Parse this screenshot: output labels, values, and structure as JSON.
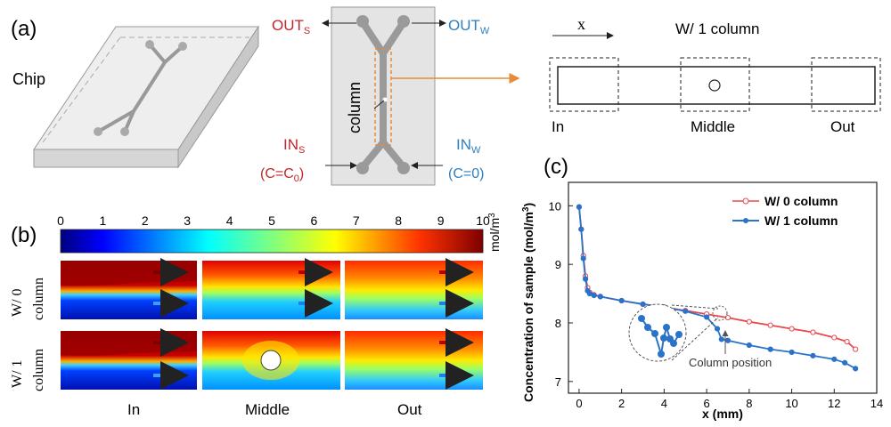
{
  "panel_a": {
    "label": "(a)",
    "chip_label": "Chip",
    "out_s": "OUT",
    "out_s_sub": "S",
    "out_w": "OUT",
    "out_w_sub": "W",
    "in_s": "IN",
    "in_s_sub": "S",
    "in_s_cond": "(C=C",
    "in_s_cond_sub": "0",
    "in_s_cond_end": ")",
    "in_w": "IN",
    "in_w_sub": "W",
    "in_w_cond": "(C=0)",
    "column_label": "column",
    "x_label": "x",
    "schematic_title": "W/ 1 column",
    "region_in": "In",
    "region_middle": "Middle",
    "region_out": "Out",
    "colors": {
      "red": "#c0262b",
      "blue": "#2d7fc0",
      "orange": "#e88a3a",
      "chip_gray": "#d9d9d9"
    }
  },
  "panel_b": {
    "label": "(b)",
    "colorbar_ticks": [
      "0",
      "1",
      "2",
      "3",
      "4",
      "5",
      "6",
      "7",
      "8",
      "9",
      "10"
    ],
    "colorbar_unit": "mol/m",
    "colorbar_unit_sup": "3",
    "row_labels": [
      {
        "line1": "W/ 0",
        "line2": "column"
      },
      {
        "line1": "W/ 1",
        "line2": "column"
      }
    ],
    "col_labels": [
      "In",
      "Middle",
      "Out"
    ]
  },
  "chart_data": {
    "type": "line",
    "panel_label": "(c)",
    "xlabel": "x (mm)",
    "ylabel": "Concentration of sample (mol/m",
    "ylabel_sup": "3",
    "ylabel_end": ")",
    "xlim": [
      -0.5,
      14
    ],
    "ylim": [
      6.8,
      10.4
    ],
    "xticks": [
      0,
      2,
      4,
      6,
      8,
      10,
      12,
      14
    ],
    "yticks": [
      7,
      8,
      9,
      10
    ],
    "legend_position": "top-right",
    "annotation": "Column position",
    "series": [
      {
        "name": "W/ 0 column",
        "color": "#e8484f",
        "marker": "open-circle",
        "x": [
          0,
          0.1,
          0.2,
          0.3,
          0.4,
          0.5,
          0.7,
          1.0,
          2.0,
          3.0,
          4.0,
          5.0,
          6.0,
          7.0,
          8.0,
          9.0,
          10.0,
          11.0,
          12.0,
          12.6,
          13.0
        ],
        "y": [
          9.98,
          9.6,
          9.15,
          8.8,
          8.6,
          8.52,
          8.48,
          8.45,
          8.38,
          8.32,
          8.27,
          8.21,
          8.15,
          8.09,
          8.02,
          7.96,
          7.9,
          7.84,
          7.75,
          7.68,
          7.55
        ]
      },
      {
        "name": "W/ 1 column",
        "color": "#2a73c9",
        "marker": "filled-circle",
        "x": [
          0,
          0.1,
          0.2,
          0.3,
          0.4,
          0.5,
          0.7,
          1.0,
          2.0,
          3.0,
          4.0,
          5.0,
          6.0,
          6.5,
          6.7,
          7.0,
          8.0,
          9.0,
          10.0,
          11.0,
          12.0,
          12.5,
          13.0
        ],
        "y": [
          9.98,
          9.6,
          9.1,
          8.75,
          8.55,
          8.5,
          8.47,
          8.45,
          8.38,
          8.32,
          8.27,
          8.2,
          8.1,
          7.9,
          7.72,
          7.7,
          7.62,
          7.55,
          7.5,
          7.44,
          7.38,
          7.32,
          7.22
        ]
      }
    ]
  }
}
